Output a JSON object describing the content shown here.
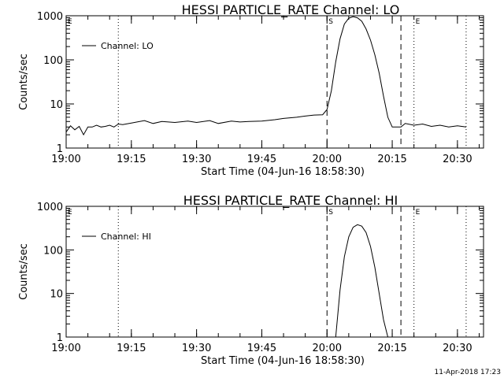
{
  "footer": {
    "timestamp": "11-Apr-2018 17:23"
  },
  "chart_data": [
    {
      "type": "line",
      "title": "HESSI PARTICLE_RATE Channel: LO",
      "xlabel": "Start Time (04-Jun-16 18:58:30)",
      "ylabel": "Counts/sec",
      "y_scale": "log",
      "ylim": [
        1,
        1000
      ],
      "xlim": [
        "19:00",
        "20:36"
      ],
      "y_ticks": [
        "1",
        "10",
        "100",
        "1000"
      ],
      "x_ticks": [
        "19:00",
        "19:15",
        "19:30",
        "19:45",
        "20:00",
        "20:15",
        "20:30"
      ],
      "legend": {
        "placement": "top-left",
        "label": "Channel: LO"
      },
      "vlines": [
        {
          "time": "19:12",
          "style": "dotted",
          "label": ""
        },
        {
          "time": "20:00",
          "style": "dashed",
          "label": "S"
        },
        {
          "time": "20:17",
          "style": "dashed",
          "label": ""
        },
        {
          "time": "20:20",
          "style": "dotted",
          "label": "E"
        },
        {
          "time": "20:32",
          "style": "dotted",
          "label": ""
        }
      ],
      "edge_label": "E",
      "series": [
        {
          "name": "Channel: LO",
          "points": [
            [
              "19:00",
              2.3
            ],
            [
              "19:01",
              3.2
            ],
            [
              "19:02",
              2.6
            ],
            [
              "19:03",
              3.1
            ],
            [
              "19:04",
              2.0
            ],
            [
              "19:05",
              3.0
            ],
            [
              "19:06",
              3.0
            ],
            [
              "19:07",
              3.3
            ],
            [
              "19:08",
              3.0
            ],
            [
              "19:09",
              3.1
            ],
            [
              "19:10",
              3.3
            ],
            [
              "19:11",
              3.0
            ],
            [
              "19:12",
              3.5
            ],
            [
              "19:13",
              3.4
            ],
            [
              "19:15",
              3.7
            ],
            [
              "19:18",
              4.2
            ],
            [
              "19:20",
              3.6
            ],
            [
              "19:22",
              4.0
            ],
            [
              "19:25",
              3.8
            ],
            [
              "19:28",
              4.1
            ],
            [
              "19:30",
              3.8
            ],
            [
              "19:33",
              4.2
            ],
            [
              "19:35",
              3.6
            ],
            [
              "19:38",
              4.1
            ],
            [
              "19:40",
              3.9
            ],
            [
              "19:42",
              4.0
            ],
            [
              "19:45",
              4.1
            ],
            [
              "19:48",
              4.4
            ],
            [
              "19:50",
              4.7
            ],
            [
              "19:53",
              5.0
            ],
            [
              "19:55",
              5.3
            ],
            [
              "19:57",
              5.6
            ],
            [
              "19:59",
              5.7
            ],
            [
              "20:00",
              7.5
            ],
            [
              "20:01",
              20
            ],
            [
              "20:02",
              90
            ],
            [
              "20:03",
              300
            ],
            [
              "20:04",
              650
            ],
            [
              "20:05",
              880
            ],
            [
              "20:06",
              950
            ],
            [
              "20:07",
              900
            ],
            [
              "20:08",
              750
            ],
            [
              "20:09",
              500
            ],
            [
              "20:10",
              280
            ],
            [
              "20:11",
              130
            ],
            [
              "20:12",
              50
            ],
            [
              "20:13",
              15
            ],
            [
              "20:14",
              5
            ],
            [
              "20:15",
              3
            ],
            [
              "20:17",
              3.0
            ],
            [
              "20:18",
              3.6
            ],
            [
              "20:20",
              3.3
            ],
            [
              "20:22",
              3.5
            ],
            [
              "20:24",
              3.1
            ],
            [
              "20:26",
              3.3
            ],
            [
              "20:28",
              3.0
            ],
            [
              "20:30",
              3.2
            ],
            [
              "20:32",
              3.0
            ]
          ]
        }
      ]
    },
    {
      "type": "line",
      "title": "HESSI PARTICLE_RATE Channel: HI",
      "xlabel": "Start Time (04-Jun-16 18:58:30)",
      "ylabel": "Counts/sec",
      "y_scale": "log",
      "ylim": [
        1,
        1000
      ],
      "xlim": [
        "19:00",
        "20:36"
      ],
      "y_ticks": [
        "1",
        "10",
        "100",
        "1000"
      ],
      "x_ticks": [
        "19:00",
        "19:15",
        "19:30",
        "19:45",
        "20:00",
        "20:15",
        "20:30"
      ],
      "legend": {
        "placement": "top-left",
        "label": "Channel: HI"
      },
      "vlines": [
        {
          "time": "19:12",
          "style": "dotted",
          "label": ""
        },
        {
          "time": "20:00",
          "style": "dashed",
          "label": "S"
        },
        {
          "time": "20:17",
          "style": "dashed",
          "label": ""
        },
        {
          "time": "20:20",
          "style": "dotted",
          "label": "E"
        },
        {
          "time": "20:32",
          "style": "dotted",
          "label": ""
        }
      ],
      "edge_label": "E",
      "series": [
        {
          "name": "Channel: HI",
          "points": [
            [
              "20:02",
              1.0
            ],
            [
              "20:03",
              12
            ],
            [
              "20:04",
              70
            ],
            [
              "20:05",
              200
            ],
            [
              "20:06",
              330
            ],
            [
              "20:07",
              380
            ],
            [
              "20:08",
              350
            ],
            [
              "20:09",
              250
            ],
            [
              "20:10",
              120
            ],
            [
              "20:11",
              40
            ],
            [
              "20:12",
              10
            ],
            [
              "20:13",
              2.5
            ],
            [
              "20:14",
              1.0
            ]
          ]
        }
      ]
    }
  ]
}
